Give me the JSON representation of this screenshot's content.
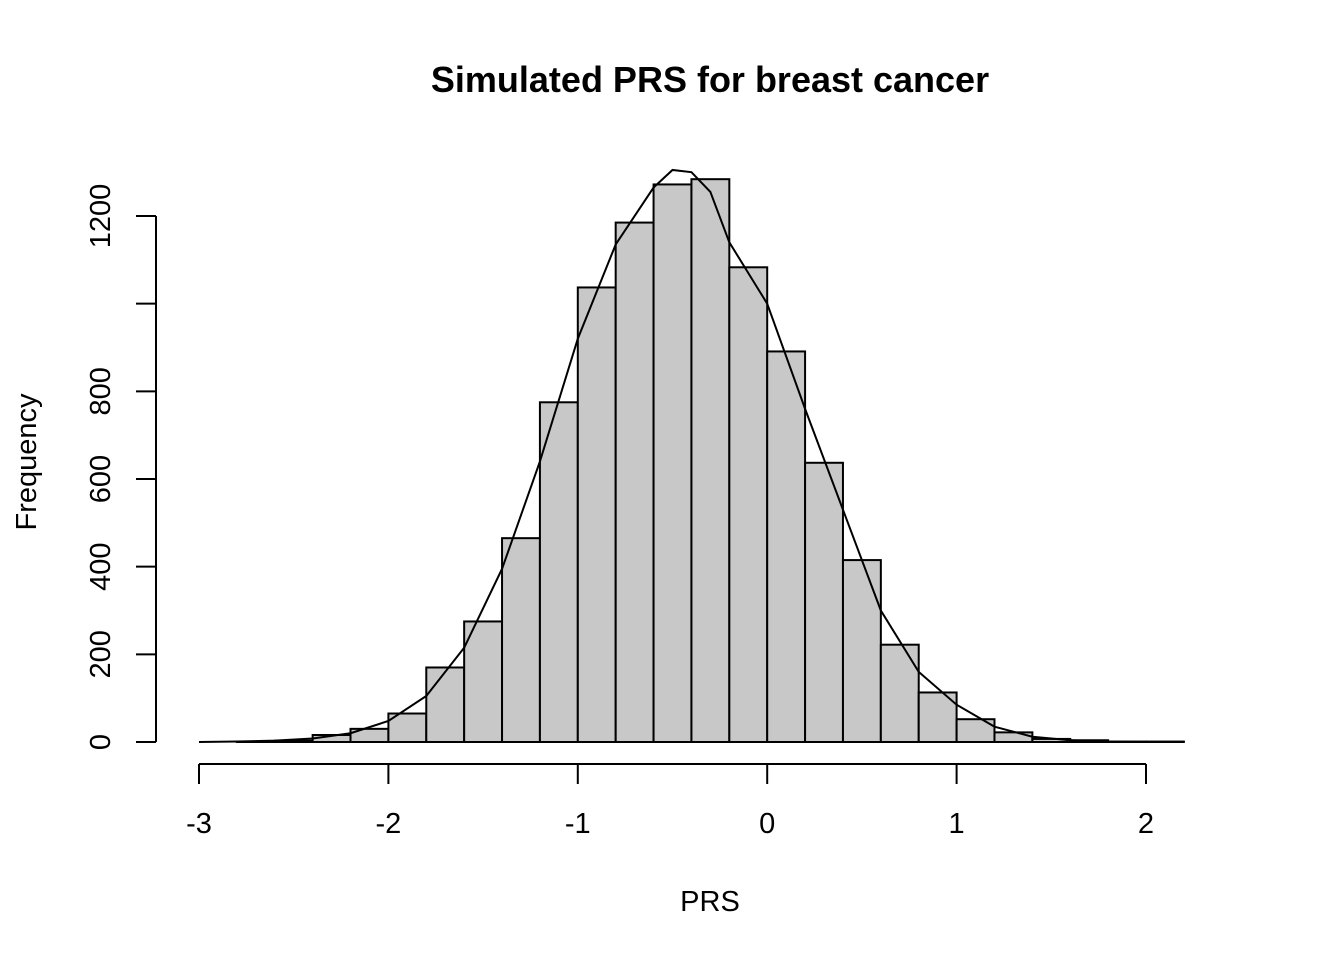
{
  "chart_data": {
    "type": "bar",
    "title": "Simulated PRS for breast cancer",
    "xlabel": "PRS",
    "ylabel": "Frequency",
    "xlim": [
      -3,
      2.4
    ],
    "ylim": [
      0,
      1300
    ],
    "x_ticks": [
      -3,
      -2,
      -1,
      0,
      1,
      2
    ],
    "y_ticks": [
      0,
      200,
      400,
      600,
      800,
      1200
    ],
    "y_tick_marks": [
      0,
      200,
      400,
      600,
      800,
      1000,
      1200
    ],
    "bar_color": "#c8c8c8",
    "bins": [
      {
        "x0": -2.8,
        "x1": -2.6,
        "count": 1
      },
      {
        "x0": -2.6,
        "x1": -2.4,
        "count": 3
      },
      {
        "x0": -2.4,
        "x1": -2.2,
        "count": 16
      },
      {
        "x0": -2.2,
        "x1": -2.0,
        "count": 30
      },
      {
        "x0": -2.0,
        "x1": -1.8,
        "count": 65
      },
      {
        "x0": -1.8,
        "x1": -1.6,
        "count": 170
      },
      {
        "x0": -1.6,
        "x1": -1.4,
        "count": 275
      },
      {
        "x0": -1.4,
        "x1": -1.2,
        "count": 465
      },
      {
        "x0": -1.2,
        "x1": -1.0,
        "count": 775
      },
      {
        "x0": -1.0,
        "x1": -0.8,
        "count": 1037
      },
      {
        "x0": -0.8,
        "x1": -0.6,
        "count": 1185
      },
      {
        "x0": -0.6,
        "x1": -0.4,
        "count": 1272
      },
      {
        "x0": -0.4,
        "x1": -0.2,
        "count": 1284
      },
      {
        "x0": -0.2,
        "x1": 0.0,
        "count": 1083
      },
      {
        "x0": 0.0,
        "x1": 0.2,
        "count": 891
      },
      {
        "x0": 0.2,
        "x1": 0.4,
        "count": 637
      },
      {
        "x0": 0.4,
        "x1": 0.6,
        "count": 415
      },
      {
        "x0": 0.6,
        "x1": 0.8,
        "count": 222
      },
      {
        "x0": 0.8,
        "x1": 1.0,
        "count": 113
      },
      {
        "x0": 1.0,
        "x1": 1.2,
        "count": 52
      },
      {
        "x0": 1.2,
        "x1": 1.4,
        "count": 22
      },
      {
        "x0": 1.4,
        "x1": 1.6,
        "count": 7
      },
      {
        "x0": 1.6,
        "x1": 1.8,
        "count": 4
      },
      {
        "x0": 1.8,
        "x1": 2.0,
        "count": 1
      },
      {
        "x0": 2.0,
        "x1": 2.2,
        "count": 1
      },
      {
        "x0": 2.2,
        "x1": 2.4,
        "count": 0
      }
    ],
    "density_curve": {
      "x": [
        -3.0,
        -2.8,
        -2.6,
        -2.4,
        -2.2,
        -2.0,
        -1.8,
        -1.6,
        -1.4,
        -1.2,
        -1.0,
        -0.8,
        -0.6,
        -0.5,
        -0.4,
        -0.3,
        -0.2,
        0.0,
        0.2,
        0.4,
        0.6,
        0.8,
        1.0,
        1.2,
        1.4,
        1.6,
        1.8,
        2.0,
        2.2
      ],
      "y": [
        0,
        1,
        3,
        8,
        20,
        48,
        105,
        215,
        395,
        640,
        920,
        1135,
        1265,
        1305,
        1300,
        1255,
        1140,
        1000,
        760,
        530,
        300,
        160,
        85,
        35,
        12,
        4,
        1,
        0,
        0
      ]
    }
  }
}
